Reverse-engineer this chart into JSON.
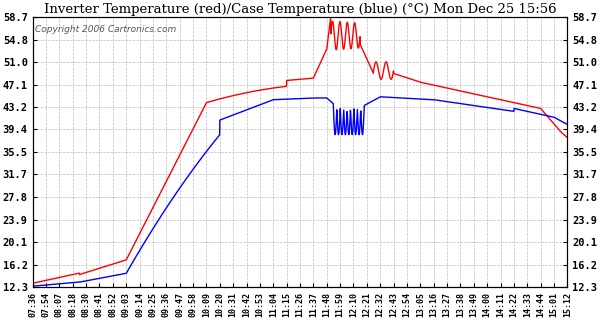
{
  "title": "Inverter Temperature (red)/Case Temperature (blue) (°C) Mon Dec 25 15:56",
  "copyright": "Copyright 2006 Cartronics.com",
  "yticks": [
    12.3,
    16.2,
    20.1,
    23.9,
    27.8,
    31.7,
    35.5,
    39.4,
    43.2,
    47.1,
    51.0,
    54.8,
    58.7
  ],
  "ylim": [
    12.3,
    58.7
  ],
  "bg_color": "#ffffff",
  "grid_color": "#bbbbbb",
  "line_red_color": "#ff0000",
  "line_blue_color": "#0000ff",
  "xtick_labels": [
    "07:36",
    "07:54",
    "08:07",
    "08:18",
    "08:30",
    "08:41",
    "08:52",
    "09:03",
    "09:14",
    "09:25",
    "09:36",
    "09:47",
    "09:58",
    "10:09",
    "10:20",
    "10:31",
    "10:42",
    "10:53",
    "11:04",
    "11:15",
    "11:26",
    "11:37",
    "11:48",
    "11:59",
    "12:10",
    "12:21",
    "12:32",
    "12:43",
    "12:54",
    "13:05",
    "13:16",
    "13:27",
    "13:38",
    "13:49",
    "14:00",
    "14:11",
    "14:22",
    "14:33",
    "14:44",
    "15:01",
    "15:12"
  ],
  "n_labels": 41
}
